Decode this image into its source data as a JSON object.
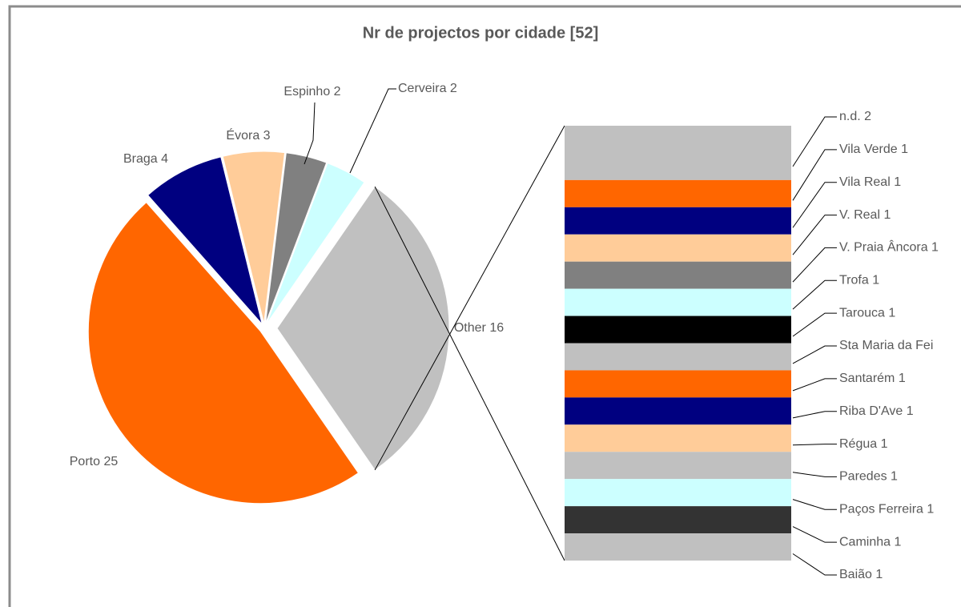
{
  "chart_data": {
    "type": "pie-of-bar",
    "title": "Nr de projectos por cidade [52]",
    "pie": {
      "values": [
        25,
        4,
        3,
        2,
        2,
        16
      ],
      "value_labels": [
        "Porto 25",
        "Braga 4",
        "Évora 3",
        "Espinho 2",
        "Cerveira 2",
        "Other 16"
      ],
      "colors": [
        "#ff6600",
        "#000080",
        "#ffcc99",
        "#808080",
        "#ccffff",
        "#c0c0c0"
      ]
    },
    "bar": {
      "values": [
        2,
        1,
        1,
        1,
        1,
        1,
        1,
        1,
        1,
        1,
        1,
        1,
        1,
        1,
        1
      ],
      "value_labels": [
        "n.d. 2",
        "Vila Verde 1",
        "Vila Real 1",
        "V. Real 1",
        "V. Praia Âncora 1",
        "Trofa 1",
        "Tarouca 1",
        "Sta Maria da Fei",
        "Santarém 1",
        "Riba D'Ave 1",
        "Régua 1",
        "Paredes 1",
        "Paços Ferreira 1",
        "Caminha 1",
        "Baião 1"
      ],
      "colors": [
        "#c0c0c0",
        "#ff6600",
        "#000080",
        "#ffcc99",
        "#808080",
        "#ccffff",
        "#000000",
        "#c0c0c0",
        "#ff6600",
        "#000080",
        "#ffcc99",
        "#c0c0c0",
        "#ccffff",
        "#333333",
        "#c0c0c0"
      ]
    }
  }
}
